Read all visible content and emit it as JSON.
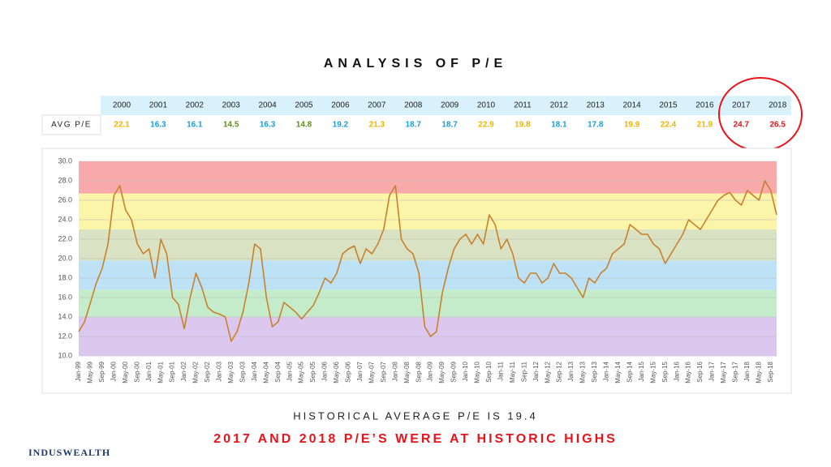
{
  "title": "ANALYSIS OF P/E",
  "table": {
    "row_label": "AVG P/E",
    "years": [
      2000,
      2001,
      2002,
      2003,
      2004,
      2005,
      2006,
      2007,
      2008,
      2009,
      2010,
      2011,
      2012,
      2013,
      2014,
      2015,
      2016,
      2017,
      2018
    ],
    "values": [
      22.1,
      16.3,
      16.1,
      14.5,
      16.3,
      14.8,
      19.2,
      21.3,
      18.7,
      18.7,
      22.9,
      19.8,
      18.1,
      17.8,
      19.9,
      22.4,
      21.9,
      24.7,
      26.5
    ],
    "colors": [
      "#f0b400",
      "#1a9fd8",
      "#1a9fd8",
      "#5e8f1e",
      "#1a9fd8",
      "#5e8f1e",
      "#1a9fd8",
      "#f0b400",
      "#1a9fd8",
      "#1a9fd8",
      "#f0b400",
      "#f0b400",
      "#1a9fd8",
      "#1a9fd8",
      "#f0b400",
      "#f0b400",
      "#f0b400",
      "#e8141c",
      "#e8141c"
    ]
  },
  "chart_data": {
    "type": "line",
    "color": "#c9802c",
    "categories": [
      "Jan-99",
      null,
      "May-99",
      null,
      "Sep-99",
      null,
      "Jan-00",
      null,
      "May-00",
      null,
      "Sep-00",
      null,
      "Jan-01",
      null,
      "May-01",
      null,
      "Sep-01",
      null,
      "Jan-02",
      null,
      "May-02",
      null,
      "Sep-02",
      null,
      "Jan-03",
      null,
      "May-03",
      null,
      "Sep-03",
      null,
      "Jan-04",
      null,
      "May-04",
      null,
      "Sep-04",
      null,
      "Jan-05",
      null,
      "May-05",
      null,
      "Sep-05",
      null,
      "Jan-06",
      null,
      "May-06",
      null,
      "Sep-06",
      null,
      "Jan-07",
      null,
      "May-07",
      null,
      "Sep-07",
      null,
      "Jan-08",
      null,
      "May-08",
      null,
      "Sep-08",
      null,
      "Jan-09",
      null,
      "May-09",
      null,
      "Sep-09",
      null,
      "Jan-10",
      null,
      "May-10",
      null,
      "Sep-10",
      null,
      "Jan-11",
      null,
      "May-11",
      null,
      "Sep-11",
      null,
      "Jan-12",
      null,
      "May-12",
      null,
      "Sep-12",
      null,
      "Jan-13",
      null,
      "May-13",
      null,
      "Sep-13",
      null,
      "Jan-14",
      null,
      "May-14",
      null,
      "Sep-14",
      null,
      "Jan-15",
      null,
      "May-15",
      null,
      "Sep-15",
      null,
      "Jan-16",
      null,
      "May-16",
      null,
      "Sep-16",
      null,
      "Jan-17",
      null,
      "May-17",
      null,
      "Sep-17",
      null,
      "Jan-18",
      null,
      "May-18",
      null,
      "Sep-18",
      null
    ],
    "values": [
      12.5,
      13.5,
      15.5,
      17.5,
      19.0,
      21.5,
      26.5,
      27.5,
      25,
      24,
      21.5,
      20.5,
      21,
      18,
      22,
      20.5,
      16.0,
      15.3,
      12.8,
      16,
      18.5,
      17.0,
      15.0,
      14.5,
      14.3,
      14.0,
      11.5,
      12.5,
      14.5,
      17.5,
      21.5,
      21.0,
      16,
      13,
      13.5,
      15.5,
      15.0,
      14.5,
      13.8,
      14.5,
      15.2,
      16.5,
      18,
      17.5,
      18.5,
      20.5,
      21.0,
      21.3,
      19.5,
      21,
      20.5,
      21.5,
      23,
      26.5,
      27.5,
      22,
      21,
      20.5,
      18.5,
      13,
      12,
      12.5,
      16.5,
      19,
      21,
      22,
      22.5,
      21.5,
      22.5,
      21.5,
      24.5,
      23.5,
      21,
      22,
      20.5,
      18,
      17.5,
      18.5,
      18.5,
      17.5,
      18,
      19.5,
      18.5,
      18.5,
      18.0,
      17.0,
      16.0,
      18.0,
      17.5,
      18.5,
      19.0,
      20.5,
      21.0,
      21.5,
      23.5,
      23.0,
      22.5,
      22.5,
      21.5,
      21.0,
      19.5,
      20.5,
      21.5,
      22.5,
      24.0,
      23.5,
      23.0,
      24.0,
      25.0,
      26.0,
      26.5,
      26.8,
      26.0,
      25.5,
      27.0,
      26.5,
      26.0,
      28.0,
      27.0,
      24.5
    ],
    "ylim": [
      10,
      30
    ],
    "yticks": [
      {
        "value": 10,
        "label": "10.0"
      },
      {
        "value": 12,
        "label": "12.0"
      },
      {
        "value": 14,
        "label": "14.0"
      },
      {
        "value": 16,
        "label": "16.0"
      },
      {
        "value": 18,
        "label": "18.0"
      },
      {
        "value": 20,
        "label": "20.0"
      },
      {
        "value": 22,
        "label": "22.0"
      },
      {
        "value": 24,
        "label": "24.0"
      },
      {
        "value": 26,
        "label": "26.0"
      },
      {
        "value": 28,
        "label": "28.0"
      },
      {
        "value": 30,
        "label": "30.0"
      }
    ],
    "grid": true,
    "bands": [
      {
        "from": 10,
        "to": 14,
        "color": "#dcc8ee"
      },
      {
        "from": 14,
        "to": 16.8,
        "color": "#c5ecca"
      },
      {
        "from": 16.8,
        "to": 19.8,
        "color": "#bde2f6"
      },
      {
        "from": 19.8,
        "to": 23,
        "color": "#d9e2c2"
      },
      {
        "from": 23,
        "to": 26.7,
        "color": "#fbf5aa"
      },
      {
        "from": 26.7,
        "to": 30,
        "color": "#f8aaaa"
      }
    ]
  },
  "subtitle": "HISTORICAL AVERAGE P/E IS 19.4",
  "headline": "2017 AND 2018 P/E’S WERE AT HISTORIC HIGHS",
  "logo": "INDUSWEALTH"
}
